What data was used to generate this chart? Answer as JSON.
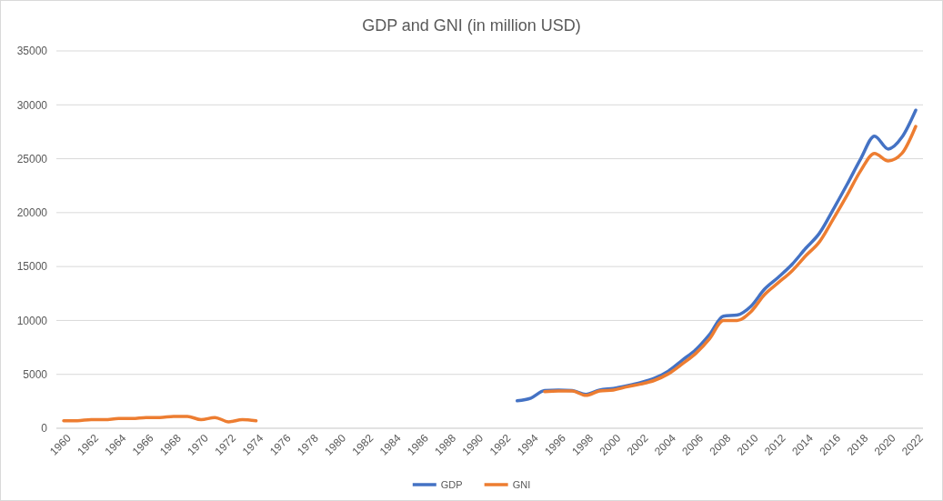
{
  "chart_data": {
    "type": "line",
    "title": "GDP and GNI (in million USD)",
    "categories": [
      "1960",
      null,
      "1962",
      null,
      "1964",
      null,
      "1966",
      null,
      "1968",
      null,
      "1970",
      null,
      "1972",
      null,
      "1974",
      null,
      "1976",
      null,
      "1978",
      null,
      "1980",
      null,
      "1982",
      null,
      "1984",
      null,
      "1986",
      null,
      "1988",
      null,
      "1990",
      null,
      "1992",
      null,
      "1994",
      null,
      "1996",
      null,
      "1998",
      null,
      "2000",
      null,
      "2002",
      null,
      "2004",
      null,
      "2006",
      null,
      "2008",
      null,
      "2010",
      null,
      "2012",
      null,
      "2014",
      null,
      "2016",
      null,
      "2018",
      null,
      "2020",
      null,
      "2022"
    ],
    "series": [
      {
        "name": "GDP",
        "color": "#4472c4",
        "values": [
          null,
          null,
          null,
          null,
          null,
          null,
          null,
          null,
          null,
          null,
          null,
          null,
          null,
          null,
          null,
          null,
          null,
          null,
          null,
          null,
          null,
          null,
          null,
          null,
          null,
          null,
          null,
          null,
          null,
          null,
          null,
          null,
          null,
          2550,
          2800,
          3500,
          3550,
          3500,
          3150,
          3550,
          3700,
          3950,
          4250,
          4650,
          5300,
          6300,
          7300,
          8700,
          10400,
          10500,
          11300,
          12900,
          14000,
          15200,
          16700,
          18100,
          20300,
          22600,
          25000,
          27100,
          25900,
          27000,
          29500
        ]
      },
      {
        "name": "GNI",
        "color": "#ed7d31",
        "values": [
          700,
          700,
          800,
          800,
          900,
          900,
          1000,
          1000,
          1100,
          1100,
          800,
          1000,
          600,
          800,
          700,
          null,
          null,
          null,
          null,
          null,
          null,
          null,
          null,
          null,
          null,
          null,
          null,
          null,
          null,
          null,
          null,
          null,
          null,
          null,
          null,
          3400,
          3450,
          3450,
          3050,
          3450,
          3550,
          3850,
          4100,
          4450,
          5050,
          5950,
          6950,
          8300,
          10000,
          10000,
          10800,
          12400,
          13500,
          14600,
          16000,
          17300,
          19400,
          21600,
          23900,
          25500,
          24800,
          25500,
          28000
        ]
      }
    ],
    "ylim": [
      0,
      35000
    ],
    "yticks": [
      0,
      5000,
      10000,
      15000,
      20000,
      25000,
      30000,
      35000
    ],
    "grid": "y",
    "legend": "bottom",
    "marker": "none",
    "line_style": "solid"
  }
}
